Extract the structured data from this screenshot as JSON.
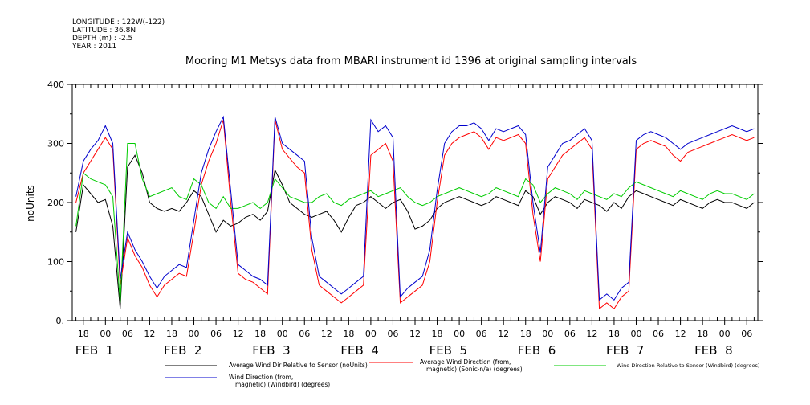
{
  "meta": {
    "longitude": "LONGITUDE : 122W(-122)",
    "latitude": "LATITUDE : 36.8N",
    "depth": "DEPTH (m) : -2.5",
    "year": "YEAR : 2011"
  },
  "chart_data": {
    "type": "line",
    "title": "Mooring M1 Metsys data from MBARI instrument id 1396 at original sampling intervals",
    "ylabel": "noUnits",
    "xlabel": "",
    "ylim": [
      0,
      400
    ],
    "yticks": [
      0,
      100,
      200,
      300,
      400
    ],
    "xlim": [
      -9,
      177
    ],
    "hour_ticks": [
      {
        "hour": -6,
        "label": "18"
      },
      {
        "hour": 0,
        "label": "00"
      },
      {
        "hour": 6,
        "label": "06"
      },
      {
        "hour": 12,
        "label": "12"
      },
      {
        "hour": 18,
        "label": "18"
      },
      {
        "hour": 24,
        "label": "00"
      },
      {
        "hour": 30,
        "label": "06"
      },
      {
        "hour": 36,
        "label": "12"
      },
      {
        "hour": 42,
        "label": "18"
      },
      {
        "hour": 48,
        "label": "00"
      },
      {
        "hour": 54,
        "label": "06"
      },
      {
        "hour": 60,
        "label": "12"
      },
      {
        "hour": 66,
        "label": "18"
      },
      {
        "hour": 72,
        "label": "00"
      },
      {
        "hour": 78,
        "label": "06"
      },
      {
        "hour": 84,
        "label": "12"
      },
      {
        "hour": 90,
        "label": "18"
      },
      {
        "hour": 96,
        "label": "00"
      },
      {
        "hour": 102,
        "label": "06"
      },
      {
        "hour": 108,
        "label": "12"
      },
      {
        "hour": 114,
        "label": "18"
      },
      {
        "hour": 120,
        "label": "00"
      },
      {
        "hour": 126,
        "label": "06"
      },
      {
        "hour": 132,
        "label": "12"
      },
      {
        "hour": 138,
        "label": "18"
      },
      {
        "hour": 144,
        "label": "00"
      },
      {
        "hour": 150,
        "label": "06"
      },
      {
        "hour": 156,
        "label": "12"
      },
      {
        "hour": 162,
        "label": "18"
      },
      {
        "hour": 168,
        "label": "00"
      },
      {
        "hour": 174,
        "label": "06"
      }
    ],
    "day_labels": [
      {
        "hour": -3,
        "label": "FEB  1"
      },
      {
        "hour": 21,
        "label": "FEB  2"
      },
      {
        "hour": 45,
        "label": "FEB  3"
      },
      {
        "hour": 69,
        "label": "FEB  4"
      },
      {
        "hour": 93,
        "label": "FEB  5"
      },
      {
        "hour": 117,
        "label": "FEB  6"
      },
      {
        "hour": 141,
        "label": "FEB  7"
      },
      {
        "hour": 165,
        "label": "FEB  8"
      }
    ],
    "x": [
      -8,
      -6,
      -4,
      -2,
      0,
      2,
      4,
      6,
      8,
      10,
      12,
      14,
      16,
      18,
      20,
      22,
      24,
      26,
      28,
      30,
      32,
      34,
      36,
      38,
      40,
      42,
      44,
      46,
      48,
      50,
      52,
      54,
      56,
      58,
      60,
      62,
      64,
      66,
      68,
      70,
      72,
      74,
      76,
      78,
      80,
      82,
      84,
      86,
      88,
      90,
      92,
      94,
      96,
      98,
      100,
      102,
      104,
      106,
      108,
      110,
      112,
      114,
      116,
      118,
      120,
      122,
      124,
      126,
      128,
      130,
      132,
      134,
      136,
      138,
      140,
      142,
      144,
      146,
      148,
      150,
      152,
      154,
      156,
      158,
      160,
      162,
      164,
      166,
      168,
      170,
      172,
      174,
      176
    ],
    "series": [
      {
        "name": "Average Wind Dir Relative to Sensor (noUnits)",
        "color": "#000000",
        "values": [
          150,
          230,
          215,
          200,
          205,
          160,
          20,
          260,
          280,
          250,
          200,
          190,
          185,
          190,
          185,
          200,
          220,
          210,
          180,
          150,
          170,
          160,
          165,
          175,
          180,
          170,
          185,
          255,
          230,
          200,
          190,
          180,
          175,
          180,
          185,
          170,
          150,
          175,
          195,
          200,
          210,
          200,
          190,
          200,
          205,
          185,
          155,
          160,
          170,
          190,
          200,
          205,
          210,
          205,
          200,
          195,
          200,
          210,
          205,
          200,
          195,
          220,
          210,
          180,
          200,
          210,
          205,
          200,
          190,
          205,
          200,
          195,
          185,
          200,
          190,
          210,
          220,
          215,
          210,
          205,
          200,
          195,
          205,
          200,
          195,
          190,
          200,
          205,
          200,
          200,
          195,
          190,
          200
        ]
      },
      {
        "name": "Average Wind Direction (from, magnetic) (Sonic-n/a) (degrees)",
        "color": "#ff0000",
        "values": [
          200,
          250,
          270,
          290,
          310,
          290,
          60,
          140,
          110,
          90,
          60,
          40,
          60,
          70,
          80,
          75,
          150,
          230,
          270,
          300,
          340,
          200,
          80,
          70,
          65,
          55,
          45,
          340,
          290,
          275,
          260,
          250,
          120,
          60,
          50,
          40,
          30,
          40,
          50,
          60,
          280,
          290,
          300,
          270,
          30,
          40,
          50,
          60,
          100,
          200,
          280,
          300,
          310,
          315,
          320,
          310,
          290,
          310,
          305,
          310,
          315,
          300,
          180,
          100,
          240,
          260,
          280,
          290,
          300,
          310,
          290,
          20,
          30,
          20,
          40,
          50,
          290,
          300,
          305,
          300,
          295,
          280,
          270,
          285,
          290,
          295,
          300,
          305,
          310,
          315,
          310,
          305,
          310
        ]
      },
      {
        "name": "Wind Direction Relative to Sensor (Windbird) (degrees)",
        "color": "#00cc00",
        "values": [
          160,
          250,
          240,
          235,
          230,
          210,
          30,
          300,
          300,
          240,
          210,
          215,
          220,
          225,
          210,
          205,
          240,
          230,
          200,
          190,
          210,
          190,
          190,
          195,
          200,
          190,
          200,
          240,
          225,
          210,
          205,
          200,
          200,
          210,
          215,
          200,
          195,
          205,
          210,
          215,
          220,
          210,
          215,
          220,
          225,
          210,
          200,
          195,
          200,
          210,
          215,
          220,
          225,
          220,
          215,
          210,
          215,
          225,
          220,
          215,
          210,
          240,
          230,
          200,
          215,
          225,
          220,
          215,
          205,
          220,
          215,
          210,
          205,
          215,
          210,
          225,
          235,
          230,
          225,
          220,
          215,
          210,
          220,
          215,
          210,
          205,
          215,
          220,
          215,
          215,
          210,
          205,
          215
        ]
      },
      {
        "name": "Wind Direction (from, magnetic) (Windbird) (degrees)",
        "color": "#0000cc",
        "values": [
          210,
          270,
          290,
          305,
          330,
          300,
          70,
          150,
          120,
          100,
          75,
          55,
          75,
          85,
          95,
          90,
          170,
          250,
          290,
          320,
          345,
          220,
          95,
          85,
          75,
          70,
          60,
          345,
          300,
          290,
          280,
          270,
          140,
          75,
          65,
          55,
          45,
          55,
          65,
          75,
          340,
          320,
          330,
          310,
          40,
          55,
          65,
          75,
          120,
          220,
          300,
          320,
          330,
          330,
          335,
          325,
          305,
          325,
          320,
          325,
          330,
          315,
          200,
          115,
          260,
          280,
          300,
          305,
          315,
          325,
          305,
          35,
          45,
          35,
          55,
          65,
          305,
          315,
          320,
          315,
          310,
          300,
          290,
          300,
          305,
          310,
          315,
          320,
          325,
          330,
          325,
          320,
          325
        ]
      }
    ],
    "legend": [
      {
        "label_lines": [
          "Average Wind Dir Relative to Sensor (noUnits)"
        ],
        "color": "#000000"
      },
      {
        "label_lines": [
          "Average Wind Direction (from,",
          "magnetic) (Sonic-n/a) (degrees)"
        ],
        "color": "#ff0000"
      },
      {
        "label_lines": [
          "Wind Direction Relative to Sensor (Windbird) (degrees)"
        ],
        "color": "#00cc00"
      },
      {
        "label_lines": [
          "Wind Direction (from,",
          "magnetic) (Windbird) (degrees)"
        ],
        "color": "#0000cc"
      }
    ]
  }
}
